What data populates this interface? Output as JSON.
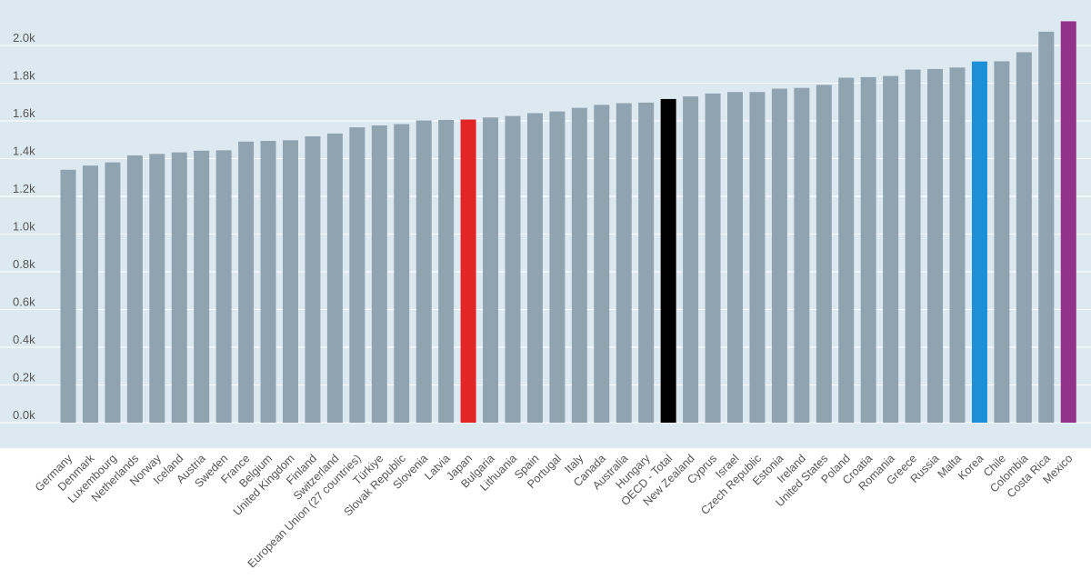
{
  "chart_data": {
    "type": "bar",
    "title": "",
    "xlabel": "",
    "ylabel": "",
    "ylim": [
      0,
      2100
    ],
    "yticks": [
      0,
      200,
      400,
      600,
      800,
      1000,
      1200,
      1400,
      1600,
      1800,
      2000
    ],
    "ytick_labels": [
      "0.0k",
      "0.2k",
      "0.4k",
      "0.6k",
      "0.8k",
      "1.0k",
      "1.2k",
      "1.4k",
      "1.6k",
      "1.8k",
      "2.0k"
    ],
    "grid": true,
    "legend": "none",
    "categories": [
      "Germany",
      "Denmark",
      "Luxembourg",
      "Netherlands",
      "Norway",
      "Iceland",
      "Austria",
      "Sweden",
      "France",
      "Belgium",
      "United Kingdom",
      "Finland",
      "Switzerland",
      "European Union (27 countries)",
      "Türkiye",
      "Slovak Republic",
      "Slovenia",
      "Latvia",
      "Japan",
      "Bulgaria",
      "Lithuania",
      "Spain",
      "Portugal",
      "Italy",
      "Canada",
      "Australia",
      "Hungary",
      "OECD - Total",
      "New Zealand",
      "Cyprus",
      "Israel",
      "Czech Republic",
      "Estonia",
      "Ireland",
      "United States",
      "Poland",
      "Croatia",
      "Romania",
      "Greece",
      "Russia",
      "Malta",
      "Korea",
      "Chile",
      "Colombia",
      "Costa Rica",
      "Mexico"
    ],
    "values": [
      1341,
      1363,
      1380,
      1417,
      1425,
      1433,
      1442,
      1444,
      1490,
      1494,
      1497,
      1518,
      1533,
      1566,
      1576,
      1583,
      1602,
      1605,
      1607,
      1618,
      1626,
      1641,
      1650,
      1669,
      1685,
      1694,
      1697,
      1716,
      1730,
      1745,
      1753,
      1753,
      1771,
      1775,
      1791,
      1829,
      1832,
      1838,
      1872,
      1875,
      1883,
      1915,
      1916,
      1964,
      2073,
      2128
    ],
    "colors": {
      "default": "#8fa3b1",
      "Japan": "#e32526",
      "OECD - Total": "#000000",
      "Korea": "#1c8fd9",
      "Mexico": "#923389"
    },
    "background": "#dce9f1",
    "label_colors": {
      "default": "#555555",
      "Japan": "#e32526",
      "OECD - Total": "#000000",
      "Korea": "#1c8fd9",
      "Mexico": "#923389"
    }
  }
}
